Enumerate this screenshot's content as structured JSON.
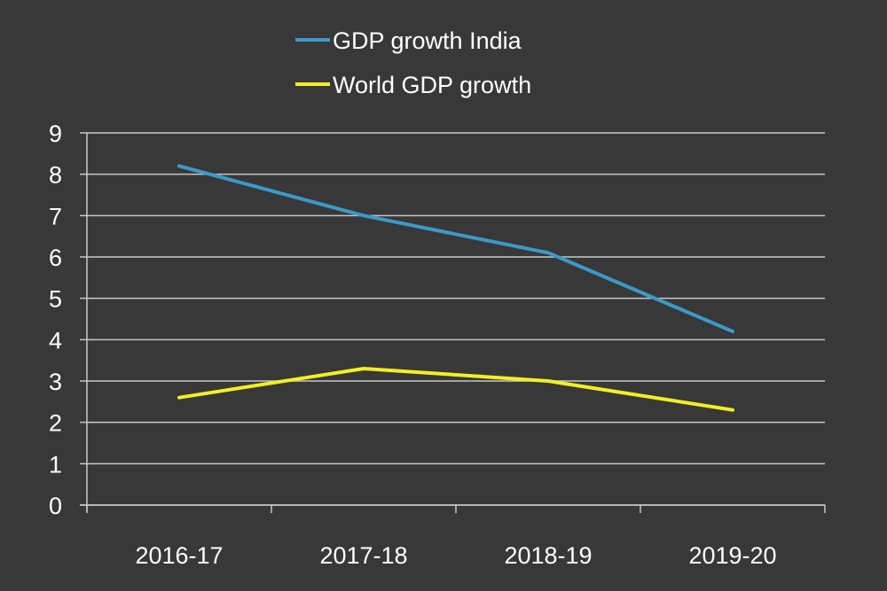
{
  "chart_data": {
    "type": "line",
    "title": "",
    "xlabel": "",
    "ylabel": "",
    "categories": [
      "2016-17",
      "2017-18",
      "2018-19",
      "2019-20"
    ],
    "series": [
      {
        "name": "GDP growth India",
        "color": "#3a9ac9",
        "values": [
          8.2,
          7.0,
          6.1,
          4.2
        ]
      },
      {
        "name": "World GDP growth",
        "color": "#f2f021",
        "values": [
          2.6,
          3.3,
          3.0,
          2.3
        ]
      }
    ],
    "ylim": [
      0,
      9
    ],
    "yticks": [
      "0",
      "1",
      "2",
      "3",
      "4",
      "5",
      "6",
      "7",
      "8",
      "9"
    ],
    "grid": true,
    "legend_position": "top-center",
    "background": "#383838",
    "gridline_color": "#c8c8c8"
  }
}
